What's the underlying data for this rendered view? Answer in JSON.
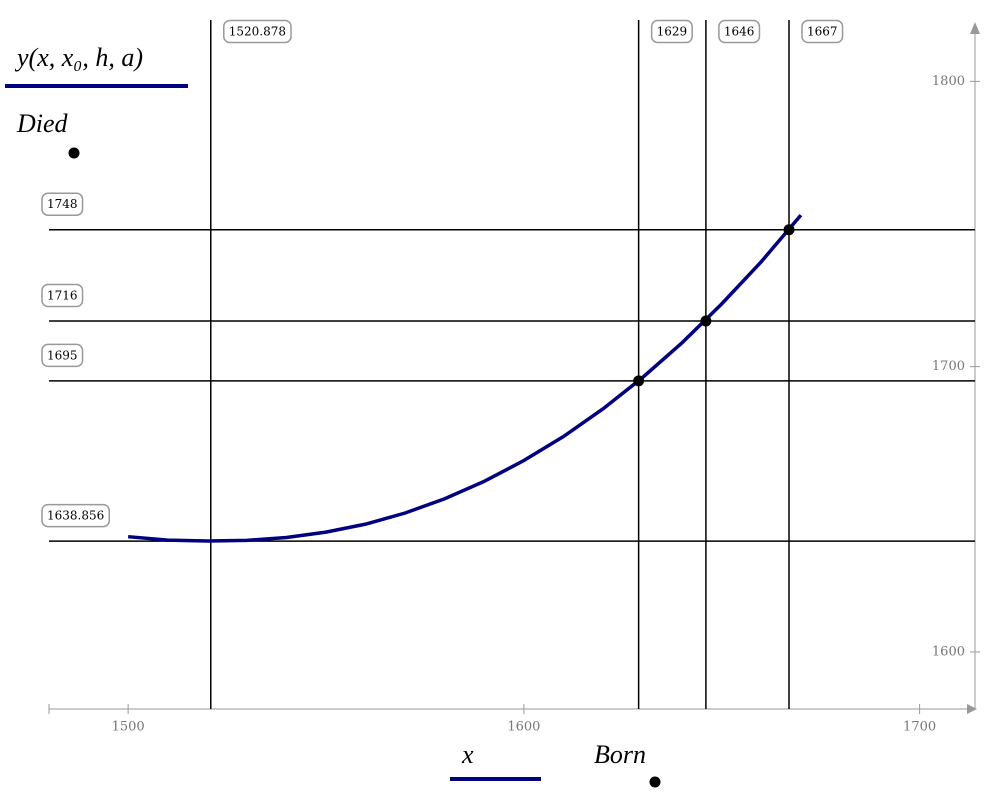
{
  "chart_data": {
    "type": "line",
    "x_label": [
      "x",
      "Born"
    ],
    "y_label": [
      "y(x, x₀, h, a)",
      "Died"
    ],
    "xlim": [
      1480,
      1714
    ],
    "ylim": [
      1580,
      1818
    ],
    "xticks": [
      1500,
      1600,
      1700
    ],
    "yticks": [
      1600,
      1700,
      1800
    ],
    "xmarkers": [
      1520.878,
      1629,
      1646,
      1667
    ],
    "ymarkers": [
      1638.856,
      1695,
      1716,
      1748
    ],
    "series": [
      {
        "name": "y(x, x₀, h, a)",
        "color": "#000080",
        "x": [
          1500,
          1510,
          1520,
          1530,
          1540,
          1550,
          1560,
          1570,
          1580,
          1590,
          1600,
          1610,
          1620,
          1630,
          1640,
          1650,
          1660,
          1670
        ],
        "values": [
          1640.4,
          1639.2,
          1638.9,
          1639.1,
          1640.1,
          1642.0,
          1644.8,
          1648.7,
          1653.7,
          1659.8,
          1667.1,
          1675.5,
          1685.2,
          1696.2,
          1708.4,
          1722.0,
          1736.8,
          1753.1
        ]
      }
    ],
    "points": {
      "color": "#000000",
      "x": [
        1629,
        1646,
        1667
      ],
      "values": [
        1695,
        1716,
        1748
      ]
    }
  }
}
